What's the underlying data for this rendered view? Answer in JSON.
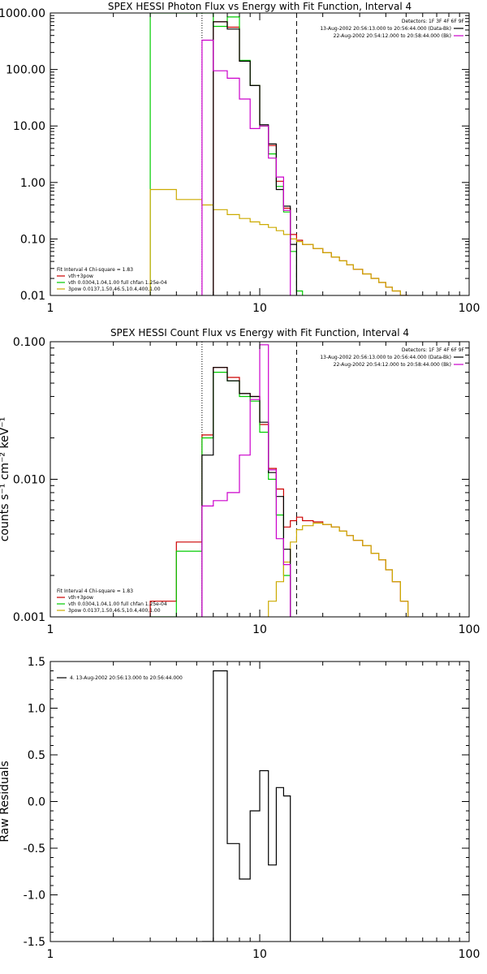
{
  "chart_data": [
    {
      "id": "photon",
      "type": "line",
      "step": true,
      "title": "SPEX HESSI Photon Flux vs Energy with Fit Function, Interval 4",
      "xlabel": "",
      "ylabel": "",
      "xscale": "log",
      "yscale": "log",
      "xlim": [
        1,
        100
      ],
      "ylim": [
        0.01,
        1000
      ],
      "xticks": [
        1,
        10,
        100
      ],
      "xticklabels": [
        "1",
        "10",
        "100"
      ],
      "yticks": [
        0.01,
        0.1,
        1,
        10,
        100,
        1000
      ],
      "yticklabels": [
        "0.01",
        "0.10",
        "1.00",
        "10.00",
        "100.00",
        "1000.00"
      ],
      "detectors": "Detectors: 1F 3F 4F 6F 9F",
      "legend_top": [
        {
          "text": "13-Aug-2002 20:56:13.000 to 20:56:44.000 (Data-Bk)",
          "color": "#000000"
        },
        {
          "text": "22-Aug-2002 20:54:12.000 to 20:58:44.000 (Bk)",
          "color": "#cc00cc"
        }
      ],
      "legend_bottom": [
        {
          "text": "Fit Interval 4   Chi-square = 1.83",
          "color": null
        },
        {
          "text": "vth+3pow",
          "color": "#cc0000"
        },
        {
          "text": "vth 0.0304,1.04,1.00  full chfan 1.25e-04",
          "color": "#00cc00"
        },
        {
          "text": "3pow 0.0137,1.50,46.5,10.4,400,1.00",
          "color": "#ccaa00"
        }
      ],
      "vlines": [
        {
          "x": 5.3,
          "style": "dotted",
          "color": "#000000"
        },
        {
          "x": 15.0,
          "style": "dashed",
          "color": "#000000"
        }
      ],
      "edges": [
        3.0,
        4.0,
        5.3,
        6.0,
        7.0,
        8.0,
        9.0,
        10.0,
        11.0,
        12.0,
        13.0,
        14.0,
        15.0,
        16.0,
        18.0,
        20.0,
        22.0,
        24.0,
        26.0,
        28.0,
        31.0,
        34.0,
        37.0,
        40.0,
        43.0,
        47.0,
        51.0
      ],
      "series": [
        {
          "name": "vth+3pow",
          "color": "#cc0000",
          "values": [
            null,
            null,
            null,
            700,
            560,
            140,
            52,
            10,
            4.5,
            1.05,
            0.35,
            0.12,
            0.095,
            0.08,
            0.068,
            0.057,
            0.048,
            0.041,
            0.035,
            0.029,
            0.024,
            0.02,
            0.017,
            0.014,
            0.012,
            0.01
          ]
        },
        {
          "name": "vth",
          "color": "#00cc00",
          "values": [
            1000,
            1000,
            1000,
            580,
            850,
            145,
            52,
            10,
            3.2,
            0.85,
            0.3,
            0.06,
            0.012,
            null,
            null,
            null,
            null,
            null,
            null,
            null,
            null,
            null,
            null,
            null,
            null,
            null
          ]
        },
        {
          "name": "3pow",
          "color": "#ccaa00",
          "values": [
            0.75,
            0.5,
            0.4,
            0.33,
            0.27,
            0.23,
            0.2,
            0.18,
            0.16,
            0.14,
            0.12,
            0.1,
            0.09,
            0.08,
            0.068,
            0.057,
            0.048,
            0.041,
            0.035,
            0.029,
            0.024,
            0.02,
            0.017,
            0.014,
            0.012,
            0.01
          ]
        },
        {
          "name": "Data-Bk",
          "color": "#000000",
          "values": [
            null,
            null,
            null,
            700,
            520,
            140,
            52,
            10.5,
            4.8,
            0.75,
            0.38,
            0.08,
            null,
            null,
            null,
            null,
            null,
            null,
            null,
            null,
            null,
            null,
            null,
            null,
            null,
            null
          ]
        },
        {
          "name": "Bk",
          "color": "#cc00cc",
          "values": [
            null,
            null,
            330,
            95,
            70,
            30,
            9,
            10,
            2.7,
            1.25,
            0.32,
            null,
            null,
            null,
            null,
            null,
            null,
            null,
            null,
            null,
            null,
            null,
            null,
            null,
            null,
            null
          ]
        }
      ]
    },
    {
      "id": "count",
      "type": "line",
      "step": true,
      "title": "SPEX HESSI Count Flux vs Energy with Fit Function, Interval 4",
      "xlabel": "",
      "ylabel": "counts s⁻¹ cm⁻² keV⁻¹",
      "xscale": "log",
      "yscale": "log",
      "xlim": [
        1,
        100
      ],
      "ylim": [
        0.001,
        0.1
      ],
      "xticks": [
        1,
        10,
        100
      ],
      "xticklabels": [
        "1",
        "10",
        "100"
      ],
      "yticks": [
        0.001,
        0.01,
        0.1
      ],
      "yticklabels": [
        "0.001",
        "0.010",
        "0.100"
      ],
      "detectors": "Detectors: 1F 3F 4F 6F 9F",
      "legend_top": [
        {
          "text": "13-Aug-2002 20:56:13.000 to 20:56:44.000 (Data-Bk)",
          "color": "#000000"
        },
        {
          "text": "22-Aug-2002 20:54:12.000 to 20:58:44.000 (Bk)",
          "color": "#cc00cc"
        }
      ],
      "legend_bottom": [
        {
          "text": "Fit Interval 4   Chi-square = 1.83",
          "color": null
        },
        {
          "text": "vth+3pow",
          "color": "#cc0000"
        },
        {
          "text": "vth 0.0304,1.04,1.00  full chfan 1.25e-04",
          "color": "#00cc00"
        },
        {
          "text": "3pow 0.0137,1.50,46.5,10.4,400,1.00",
          "color": "#ccaa00"
        }
      ],
      "vlines": [
        {
          "x": 5.3,
          "style": "dotted",
          "color": "#000000"
        },
        {
          "x": 15.0,
          "style": "dashed",
          "color": "#000000"
        }
      ],
      "edges": [
        3.0,
        4.0,
        5.3,
        6.0,
        7.0,
        8.0,
        9.0,
        10.0,
        11.0,
        12.0,
        13.0,
        14.0,
        15.0,
        16.0,
        18.0,
        20.0,
        22.0,
        24.0,
        26.0,
        28.0,
        31.0,
        34.0,
        37.0,
        40.0,
        43.0,
        47.0,
        51.0
      ],
      "series": [
        {
          "name": "vth+3pow",
          "color": "#cc0000",
          "values": [
            0.0013,
            0.0035,
            0.021,
            0.065,
            0.055,
            0.042,
            0.04,
            0.025,
            0.012,
            0.0085,
            0.0045,
            0.005,
            0.0053,
            0.005,
            0.0049,
            0.0047,
            0.0045,
            0.0042,
            0.0039,
            0.0036,
            0.0033,
            0.0029,
            0.0026,
            0.0022,
            0.0018,
            0.0013
          ]
        },
        {
          "name": "vth",
          "color": "#00cc00",
          "values": [
            0.001,
            0.003,
            0.02,
            0.06,
            0.052,
            0.04,
            0.037,
            0.022,
            0.01,
            0.0055,
            0.002,
            null,
            null,
            null,
            null,
            null,
            null,
            null,
            null,
            null,
            null,
            null,
            null,
            null,
            null,
            null
          ]
        },
        {
          "name": "3pow",
          "color": "#ccaa00",
          "values": [
            null,
            null,
            null,
            null,
            null,
            null,
            null,
            null,
            0.0013,
            0.0018,
            0.0025,
            0.0035,
            0.0043,
            0.0046,
            0.0048,
            0.0047,
            0.0045,
            0.0042,
            0.0039,
            0.0036,
            0.0033,
            0.0029,
            0.0026,
            0.0022,
            0.0018,
            0.0013
          ]
        },
        {
          "name": "Data-Bk",
          "color": "#000000",
          "values": [
            null,
            null,
            0.015,
            0.065,
            0.052,
            0.042,
            0.04,
            0.026,
            0.0112,
            0.0075,
            0.0031,
            null,
            null,
            null,
            null,
            null,
            null,
            null,
            null,
            null,
            null,
            null,
            null,
            null,
            null,
            null
          ]
        },
        {
          "name": "Bk",
          "color": "#cc00cc",
          "values": [
            null,
            null,
            0.0064,
            0.007,
            0.008,
            0.015,
            0.038,
            0.095,
            0.0117,
            0.0037,
            0.0024,
            null,
            null,
            null,
            null,
            null,
            null,
            null,
            null,
            null,
            null,
            null,
            null,
            null,
            null,
            null
          ]
        }
      ]
    },
    {
      "id": "resid",
      "type": "line",
      "step": true,
      "title": "",
      "xlabel": "",
      "ylabel": "Raw Residuals",
      "xscale": "log",
      "yscale": "linear",
      "xlim": [
        1,
        100
      ],
      "ylim": [
        -1.5,
        1.5
      ],
      "xticks": [
        1,
        10,
        100
      ],
      "xticklabels": [
        "1",
        "10",
        "100"
      ],
      "yticks": [
        -1.5,
        -1.0,
        -0.5,
        0.0,
        0.5,
        1.0,
        1.5
      ],
      "yticklabels": [
        "-1.5",
        "-1.0",
        "-0.5",
        "0.0",
        "0.5",
        "1.0",
        "1.5"
      ],
      "legend_top_left": [
        {
          "text": "4. 13-Aug-2002 20:56:13.000 to 20:56:44.000",
          "color": "#000000"
        }
      ],
      "edges": [
        5.3,
        6.0,
        7.0,
        8.0,
        9.0,
        10.0,
        11.0,
        12.0,
        13.0,
        14.0,
        15.0
      ],
      "series": [
        {
          "name": "4. 13-Aug-2002 20:56:13.000 to 20:56:44.000",
          "color": "#000000",
          "values": [
            -1.5,
            1.4,
            -0.45,
            -0.83,
            -0.1,
            0.33,
            -0.68,
            0.15,
            0.06,
            null
          ]
        }
      ]
    }
  ]
}
